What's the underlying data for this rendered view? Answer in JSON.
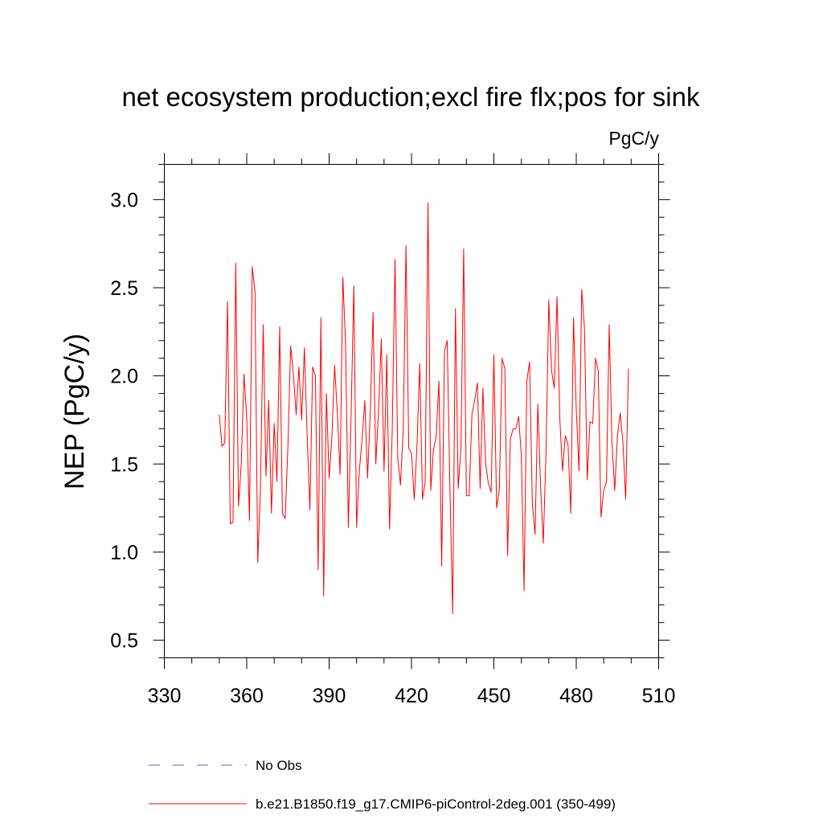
{
  "chart_data": {
    "type": "line",
    "title": "net ecosystem production;excl fire flx;pos for sink",
    "units": "PgC/y",
    "xlabel": "",
    "ylabel": "NEP  (PgC/y)",
    "xlim": [
      330,
      510
    ],
    "ylim": [
      0.4,
      3.2
    ],
    "xticks": [
      330,
      360,
      390,
      420,
      450,
      480,
      510
    ],
    "yticks": [
      0.5,
      1.0,
      1.5,
      2.0,
      2.5,
      3.0
    ],
    "xtick_labels": [
      "330",
      "360",
      "390",
      "420",
      "450",
      "480",
      "510"
    ],
    "ytick_labels": [
      "0.5",
      "1.0",
      "1.5",
      "2.0",
      "2.5",
      "3.0"
    ],
    "grid": false,
    "legend_position": "bottom",
    "colors": {
      "model": "#ff0000",
      "obs": "#6a5acd"
    },
    "legend": [
      {
        "label": "No Obs",
        "style": "dashed",
        "color": "#6a5acd"
      },
      {
        "label": "b.e21.B1850.f19_g17.CMIP6-piControl-2deg.001 (350-499)",
        "style": "solid",
        "color": "#ff0000"
      }
    ],
    "series": [
      {
        "name": "b.e21.B1850.f19_g17.CMIP6-piControl-2deg.001 (350-499)",
        "x_start": 350,
        "x_step": 1,
        "values": [
          1.78,
          1.6,
          1.62,
          2.42,
          1.16,
          1.17,
          2.64,
          1.26,
          1.5,
          2.01,
          1.76,
          1.18,
          2.62,
          2.48,
          0.94,
          1.37,
          2.29,
          1.43,
          1.86,
          1.22,
          1.73,
          1.4,
          2.28,
          1.22,
          1.19,
          1.6,
          2.17,
          2.01,
          1.78,
          2.05,
          1.75,
          2.16,
          1.66,
          1.24,
          2.05,
          2.0,
          0.9,
          2.33,
          0.75,
          1.9,
          1.42,
          1.65,
          2.06,
          1.79,
          1.44,
          2.56,
          2.18,
          1.14,
          1.77,
          2.51,
          1.14,
          1.46,
          1.64,
          1.86,
          1.42,
          1.8,
          2.36,
          1.5,
          1.8,
          2.21,
          1.46,
          2.12,
          1.13,
          1.7,
          2.66,
          1.53,
          1.38,
          1.7,
          2.74,
          1.59,
          1.56,
          1.3,
          1.6,
          2.07,
          1.3,
          1.4,
          2.98,
          1.35,
          1.58,
          1.66,
          1.97,
          0.92,
          2.14,
          2.2,
          1.36,
          0.65,
          2.38,
          1.36,
          1.59,
          2.72,
          1.32,
          1.32,
          1.78,
          1.86,
          1.96,
          1.36,
          1.93,
          1.5,
          1.39,
          1.34,
          2.12,
          1.25,
          1.36,
          2.1,
          2.04,
          0.98,
          1.64,
          1.7,
          1.7,
          1.77,
          1.55,
          0.78,
          1.97,
          2.08,
          1.28,
          1.1,
          1.84,
          1.38,
          1.05,
          1.58,
          2.43,
          2.03,
          1.93,
          2.45,
          1.76,
          1.46,
          1.66,
          1.61,
          1.22,
          2.33,
          1.81,
          1.46,
          2.49,
          2.27,
          1.41,
          1.74,
          1.73,
          2.1,
          2.03,
          1.2,
          1.35,
          1.4,
          2.29,
          1.62,
          1.35,
          1.66,
          1.79,
          1.62,
          1.3,
          2.04
        ]
      }
    ]
  }
}
